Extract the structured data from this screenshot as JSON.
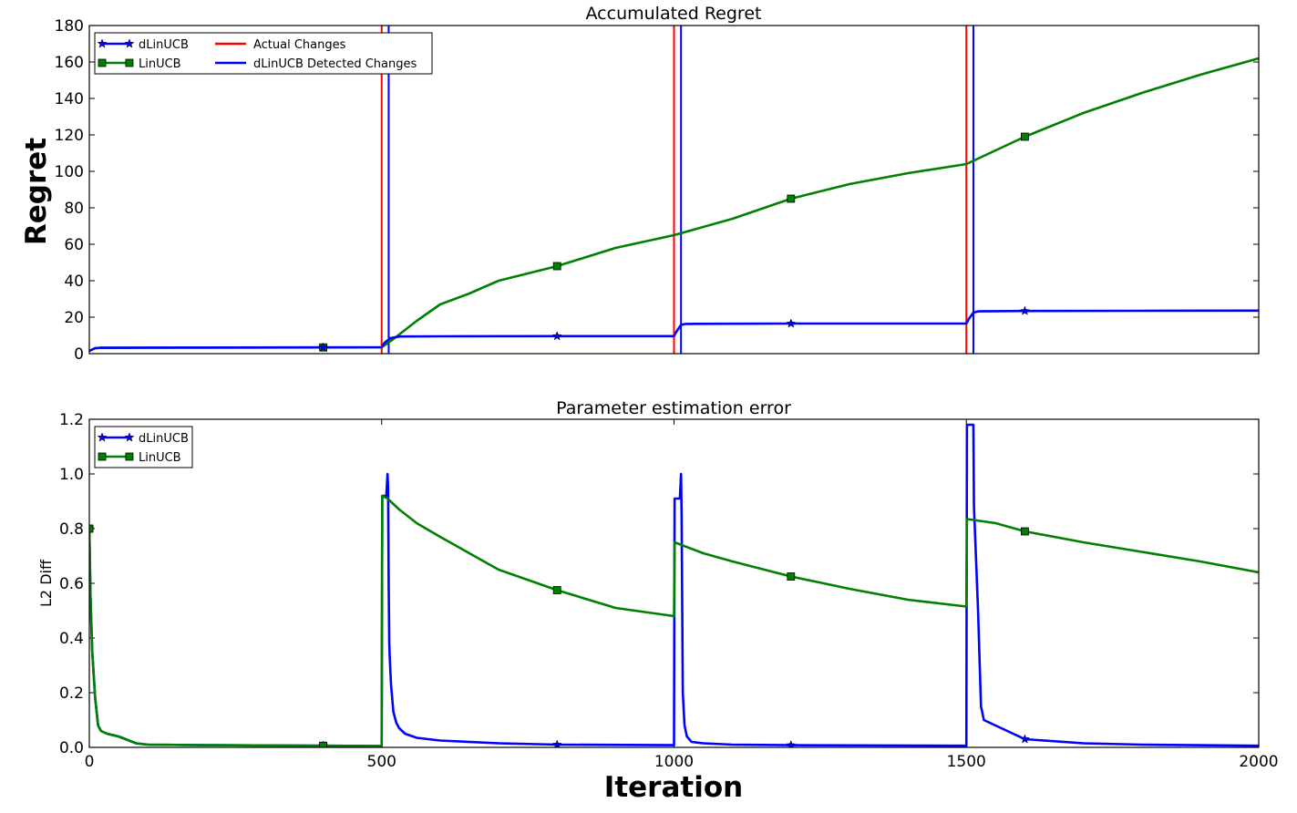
{
  "chart_data": [
    {
      "type": "line",
      "title": "Accumulated Regret",
      "xlabel": "",
      "ylabel": "Regret",
      "xlim": [
        0,
        2000
      ],
      "ylim": [
        0,
        180
      ],
      "x_ticks": [
        "0",
        "500",
        "1000",
        "1500",
        "2000"
      ],
      "y_ticks": [
        "0",
        "20",
        "40",
        "60",
        "80",
        "100",
        "120",
        "140",
        "160",
        "180"
      ],
      "legend_position": "top-left",
      "series": [
        {
          "name": "dLinUCB",
          "color": "#0000ff",
          "marker": "star",
          "x": [
            0,
            10,
            20,
            100,
            400,
            500,
            505,
            515,
            530,
            600,
            800,
            1000,
            1004,
            1012,
            1020,
            1100,
            1200,
            1500,
            1504,
            1512,
            1520,
            1550,
            1600,
            1800,
            2000
          ],
          "y": [
            1.5,
            3,
            3.2,
            3.3,
            3.4,
            3.5,
            6,
            8.5,
            9.4,
            9.5,
            9.6,
            9.6,
            12,
            15.8,
            16.3,
            16.4,
            16.5,
            16.5,
            19,
            22.5,
            23.2,
            23.3,
            23.4,
            23.5,
            23.6
          ]
        },
        {
          "name": "LinUCB",
          "color": "#008000",
          "marker": "square",
          "x": [
            0,
            10,
            20,
            100,
            400,
            500,
            520,
            560,
            600,
            650,
            700,
            800,
            900,
            1000,
            1100,
            1200,
            1300,
            1400,
            1500,
            1560,
            1600,
            1700,
            1800,
            1900,
            2000
          ],
          "y": [
            1.5,
            3,
            3.2,
            3.3,
            3.4,
            3.5,
            8,
            18,
            27,
            33,
            40,
            48,
            58,
            65,
            74,
            85,
            93,
            99,
            104,
            113,
            119,
            132,
            143,
            153,
            162
          ]
        }
      ],
      "vertical_markers": [
        {
          "name": "Actual Changes",
          "color": "#ff0000",
          "x": [
            500,
            1000,
            1500
          ]
        },
        {
          "name": "dLinUCB Detected Changes",
          "color": "#0000ff",
          "x": [
            512,
            1012,
            1512
          ]
        }
      ]
    },
    {
      "type": "line",
      "title": "Parameter estimation error",
      "xlabel": "Iteration",
      "ylabel": "L2 Diff",
      "xlim": [
        0,
        2000
      ],
      "ylim": [
        0,
        1.2
      ],
      "x_ticks": [
        "0",
        "500",
        "1000",
        "1500",
        "2000"
      ],
      "y_ticks": [
        "0.0",
        "0.2",
        "0.4",
        "0.6",
        "0.8",
        "1.0",
        "1.2"
      ],
      "legend_position": "top-left",
      "series": [
        {
          "name": "dLinUCB",
          "color": "#0000ff",
          "marker": "star",
          "x": [
            0,
            2,
            5,
            10,
            15,
            20,
            30,
            50,
            80,
            100,
            200,
            400,
            500,
            501,
            505,
            508,
            510,
            511,
            512,
            513,
            514,
            516,
            520,
            525,
            530,
            540,
            560,
            600,
            700,
            800,
            1000,
            1001,
            1005,
            1010,
            1012,
            1013,
            1015,
            1018,
            1022,
            1030,
            1050,
            1100,
            1200,
            1500,
            1501,
            1504,
            1512,
            1513,
            1520,
            1525,
            1530,
            1550,
            1600,
            1700,
            1800,
            2000
          ],
          "y": [
            0.8,
            0.55,
            0.35,
            0.18,
            0.08,
            0.06,
            0.05,
            0.04,
            0.015,
            0.01,
            0.008,
            0.006,
            0.005,
            0.92,
            0.92,
            0.92,
            1.0,
            0.95,
            0.6,
            0.38,
            0.32,
            0.23,
            0.13,
            0.09,
            0.07,
            0.05,
            0.035,
            0.025,
            0.015,
            0.01,
            0.008,
            0.91,
            0.91,
            0.91,
            1.0,
            0.85,
            0.2,
            0.08,
            0.04,
            0.02,
            0.015,
            0.01,
            0.008,
            0.006,
            1.18,
            1.18,
            1.18,
            0.88,
            0.5,
            0.15,
            0.1,
            0.08,
            0.03,
            0.015,
            0.01,
            0.006
          ]
        },
        {
          "name": "LinUCB",
          "color": "#008000",
          "marker": "square",
          "x": [
            0,
            2,
            5,
            10,
            15,
            20,
            30,
            50,
            80,
            100,
            200,
            400,
            500,
            501,
            510,
            530,
            560,
            600,
            700,
            800,
            900,
            1000,
            1001,
            1050,
            1100,
            1200,
            1300,
            1400,
            1500,
            1501,
            1550,
            1600,
            1700,
            1800,
            1900,
            2000
          ],
          "y": [
            0.8,
            0.55,
            0.35,
            0.18,
            0.08,
            0.06,
            0.05,
            0.04,
            0.015,
            0.01,
            0.008,
            0.006,
            0.005,
            0.92,
            0.91,
            0.87,
            0.82,
            0.77,
            0.65,
            0.575,
            0.51,
            0.48,
            0.75,
            0.71,
            0.68,
            0.625,
            0.58,
            0.54,
            0.515,
            0.835,
            0.82,
            0.79,
            0.75,
            0.715,
            0.68,
            0.64
          ]
        }
      ]
    }
  ]
}
